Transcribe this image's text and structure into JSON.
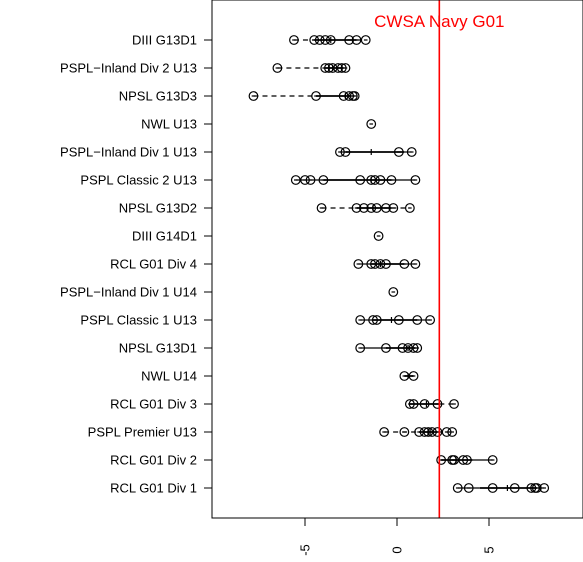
{
  "chart_data": {
    "type": "dot-range",
    "title": "",
    "xlabel": "",
    "ylabel": "",
    "xlim": [
      -8.6,
      8.6
    ],
    "x_ticks": [
      -5,
      0,
      5
    ],
    "x_tick_labels": [
      "-5",
      "0",
      "5"
    ],
    "grid": false,
    "reference_line": {
      "label": "CWSA Navy G01",
      "x": 2.3,
      "color": "#ff0000"
    },
    "rows": [
      {
        "label": "DIII G13D1",
        "points": [
          -5.6,
          -4.5,
          -4.2,
          -3.9,
          -3.6,
          -2.6,
          -2.2,
          -1.7
        ],
        "segment": [
          -4.5,
          -2.2
        ],
        "median": -3.6,
        "whisker_style": "dash"
      },
      {
        "label": "PSPL−Inland Div 2 U13",
        "points": [
          -6.5,
          -3.9,
          -3.7,
          -3.5,
          -3.2,
          -3.0,
          -2.8
        ],
        "segment": [
          -3.9,
          -2.9
        ],
        "median": -3.5,
        "whisker_style": "dash"
      },
      {
        "label": "NPSL G13D3",
        "points": [
          -7.8,
          -4.4,
          -2.9,
          -2.6,
          -2.4,
          -2.3
        ],
        "segment": [
          -4.4,
          -2.5
        ],
        "median": -2.8,
        "whisker_style": "dash"
      },
      {
        "label": "NWL U13",
        "points": [
          -1.4
        ],
        "segment": null,
        "median": -1.4,
        "whisker_style": "none"
      },
      {
        "label": "PSPL−Inland Div 1 U13",
        "points": [
          -3.1,
          -2.8,
          0.1,
          0.8
        ],
        "segment": [
          -2.8,
          0.4
        ],
        "median": -1.4,
        "whisker_style": "solid"
      },
      {
        "label": "PSPL Classic 2 U13",
        "points": [
          -5.5,
          -5.0,
          -4.7,
          -4.0,
          -2.0,
          -1.4,
          -1.2,
          -0.9,
          -0.3,
          1.0
        ],
        "segment": [
          -4.0,
          -0.3
        ],
        "median": -1.4,
        "whisker_style": "solid"
      },
      {
        "label": "NPSL G13D2",
        "points": [
          -4.1,
          -2.2,
          -1.8,
          -1.4,
          -1.1,
          -0.6,
          -0.2,
          0.7
        ],
        "segment": [
          -2.2,
          -0.3
        ],
        "median": -1.3,
        "whisker_style": "dash"
      },
      {
        "label": "DIII G14D1",
        "points": [
          -1.0
        ],
        "segment": null,
        "median": -1.0,
        "whisker_style": "none"
      },
      {
        "label": "RCL G01 Div 4",
        "points": [
          -2.1,
          -1.4,
          -1.2,
          -0.9,
          -0.6,
          0.4,
          1.0
        ],
        "segment": [
          -1.4,
          0.4
        ],
        "median": -0.9,
        "whisker_style": "solid"
      },
      {
        "label": "PSPL−Inland Div 1 U14",
        "points": [
          -0.2
        ],
        "segment": null,
        "median": -0.2,
        "whisker_style": "none"
      },
      {
        "label": "PSPL Classic 1 U13",
        "points": [
          -2.0,
          -1.3,
          -1.1,
          0.1,
          1.1,
          1.8
        ],
        "segment": [
          -1.3,
          1.1
        ],
        "median": -0.3,
        "whisker_style": "solid"
      },
      {
        "label": "NPSL G13D1",
        "points": [
          -2.0,
          -0.6,
          0.3,
          0.6,
          0.9,
          1.1
        ],
        "segment": [
          -0.6,
          1.0
        ],
        "median": 0.6,
        "whisker_style": "solid"
      },
      {
        "label": "NWL U14",
        "points": [
          0.4,
          0.9
        ],
        "segment": [
          0.4,
          0.9
        ],
        "median": 0.6,
        "whisker_style": "solid"
      },
      {
        "label": "RCL G01 Div 3",
        "points": [
          0.7,
          0.9,
          1.5,
          2.2,
          3.1
        ],
        "segment": [
          0.7,
          2.3
        ],
        "median": 1.6,
        "whisker_style": "dash"
      },
      {
        "label": "PSPL Premier U13",
        "points": [
          -0.7,
          0.4,
          1.2,
          1.5,
          1.7,
          1.9,
          2.2,
          2.7,
          3.0
        ],
        "segment": [
          1.2,
          2.2
        ],
        "median": 1.8,
        "whisker_style": "dash"
      },
      {
        "label": "RCL G01 Div 2",
        "points": [
          2.4,
          3.0,
          3.1,
          3.6,
          3.8,
          5.2
        ],
        "segment": [
          2.4,
          4.1
        ],
        "median": 3.2,
        "whisker_style": "solid"
      },
      {
        "label": "RCL G01 Div 1",
        "points": [
          3.3,
          3.9,
          5.2,
          6.4,
          7.3,
          7.5,
          7.6,
          8.0
        ],
        "segment": [
          4.5,
          7.6
        ],
        "median": 6.0,
        "whisker_style": "solid"
      }
    ]
  }
}
